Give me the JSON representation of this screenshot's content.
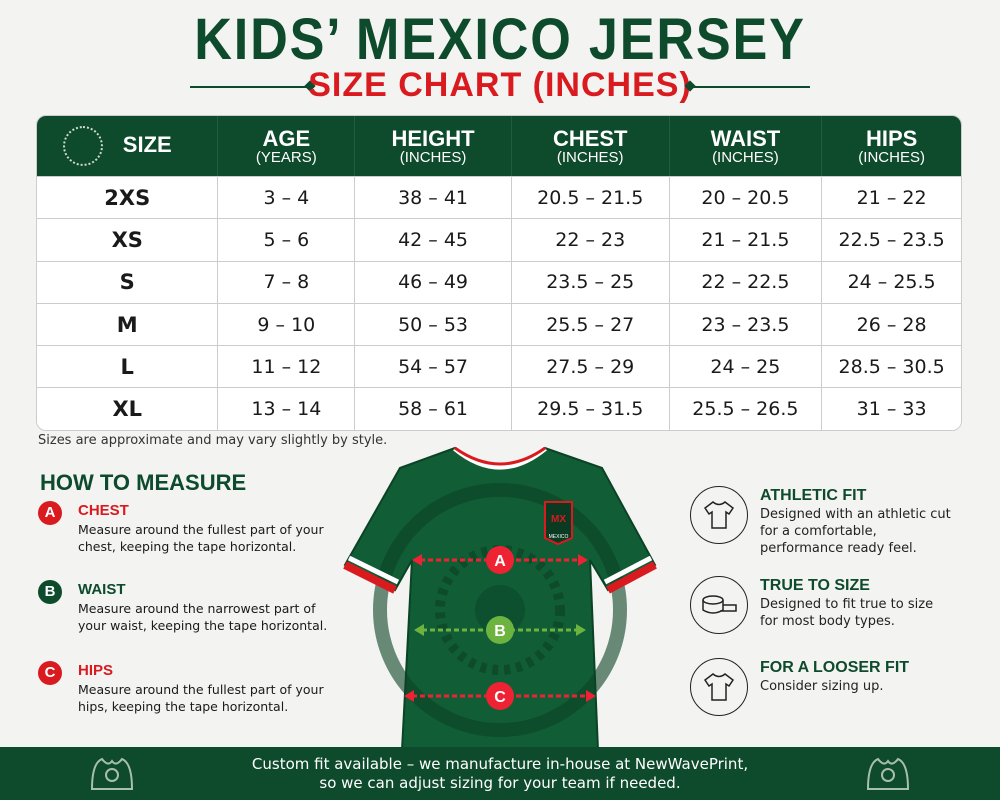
{
  "title": "KIDS’ MEXICO JERSEY",
  "subtitle": "SIZE CHART (INCHES)",
  "table": {
    "headers": [
      {
        "label": "SIZE",
        "unit": ""
      },
      {
        "label": "AGE",
        "unit": "(YEARS)"
      },
      {
        "label": "HEIGHT",
        "unit": "(INCHES)"
      },
      {
        "label": "CHEST",
        "unit": "(INCHES)"
      },
      {
        "label": "WAIST",
        "unit": "(INCHES)"
      },
      {
        "label": "HIPS",
        "unit": "(INCHES)"
      }
    ],
    "rows": [
      [
        "2XS",
        "3 – 4",
        "38 – 41",
        "20.5 – 21.5",
        "20 – 20.5",
        "21 – 22"
      ],
      [
        "XS",
        "5 – 6",
        "42 – 45",
        "22 – 23",
        "21 – 21.5",
        "22.5 – 23.5"
      ],
      [
        "S",
        "7 – 8",
        "46 – 49",
        "23.5 – 25",
        "22 – 22.5",
        "24 – 25.5"
      ],
      [
        "M",
        "9 – 10",
        "50 – 53",
        "25.5 – 27",
        "23 – 23.5",
        "26 – 28"
      ],
      [
        "L",
        "11 – 12",
        "54 – 57",
        "27.5 – 29",
        "24 – 25",
        "28.5 – 30.5"
      ],
      [
        "XL",
        "13 – 14",
        "58 – 61",
        "29.5 – 31.5",
        "25.5 – 26.5",
        "31 – 33"
      ]
    ]
  },
  "note": "Sizes are approximate and may vary slightly by style.",
  "how_to_measure": {
    "title": "HOW TO MEASURE",
    "items": [
      {
        "badge": "A",
        "title": "CHEST",
        "desc": "Measure around the fullest part of your chest, keeping the tape horizontal.",
        "color": "#d91a1f"
      },
      {
        "badge": "B",
        "title": "WAIST",
        "desc": "Measure around the narrowest part of your waist, keeping the tape horizontal.",
        "color": "#0e4a2c"
      },
      {
        "badge": "C",
        "title": "HIPS",
        "desc": "Measure around the fullest part of your hips, keeping the tape horizontal.",
        "color": "#d91a1f"
      }
    ]
  },
  "jersey": {
    "crest_top": "MX",
    "crest_bottom": "MEXICO",
    "markers": [
      "A",
      "B",
      "C"
    ]
  },
  "fit": [
    {
      "icon": "tshirt-icon",
      "title": "ATHLETIC FIT",
      "desc": "Designed with an athletic cut for a comfortable, performance ready feel."
    },
    {
      "icon": "measuring-tape-icon",
      "title": "TRUE TO SIZE",
      "desc": "Designed to fit true to size for most body types."
    },
    {
      "icon": "tshirt-icon",
      "title": "FOR A LOOSER FIT",
      "desc": "Consider sizing up."
    }
  ],
  "banner": {
    "line1": "Custom fit available – we manufacture in-house at NewWavePrint,",
    "line2": "so we can adjust sizing for your team if needed."
  },
  "colors": {
    "green": "#0e4a2c",
    "red": "#d91a1f",
    "lime": "#6db33f"
  }
}
